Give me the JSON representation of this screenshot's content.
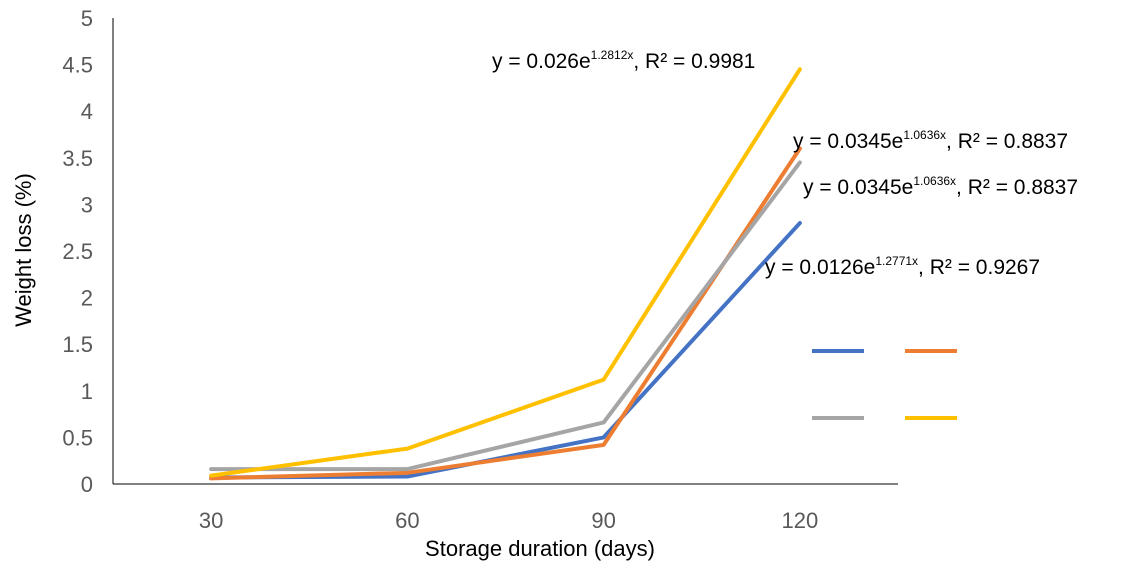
{
  "chart_data": {
    "type": "line",
    "title": "",
    "xlabel": "Storage duration (days)",
    "ylabel": "Weight loss (%)",
    "categories": [
      "30",
      "60",
      "90",
      "120"
    ],
    "ylim": [
      0,
      5
    ],
    "yticks": [
      "0",
      "0.5",
      "1",
      "1.5",
      "2",
      "2.5",
      "3",
      "3.5",
      "4",
      "4.5",
      "5"
    ],
    "grid": false,
    "legend": "right",
    "series": [
      {
        "color": "#4472C4",
        "values": [
          0.07,
          0.08,
          0.5,
          2.8
        ]
      },
      {
        "color": "#ED7D31",
        "values": [
          0.06,
          0.12,
          0.42,
          3.6
        ]
      },
      {
        "color": "#A5A5A5",
        "values": [
          0.16,
          0.16,
          0.66,
          3.45
        ]
      },
      {
        "color": "#FFC000",
        "values": [
          0.09,
          0.38,
          1.12,
          4.45
        ]
      }
    ],
    "annotations": [
      {
        "prefix": "y = 0.026e",
        "exponent": "1.2812x",
        "suffix": ", R² = 0.9981"
      },
      {
        "prefix": "y = 0.0345e",
        "exponent": "1.0636x",
        "suffix": ", R² = 0.8837"
      },
      {
        "prefix": "y = 0.0345e",
        "exponent": "1.0636x",
        "suffix": ", R² = 0.8837"
      },
      {
        "prefix": "y = 0.0126e",
        "exponent": "1.2771x",
        "suffix": ", R² = 0.9267"
      }
    ]
  }
}
